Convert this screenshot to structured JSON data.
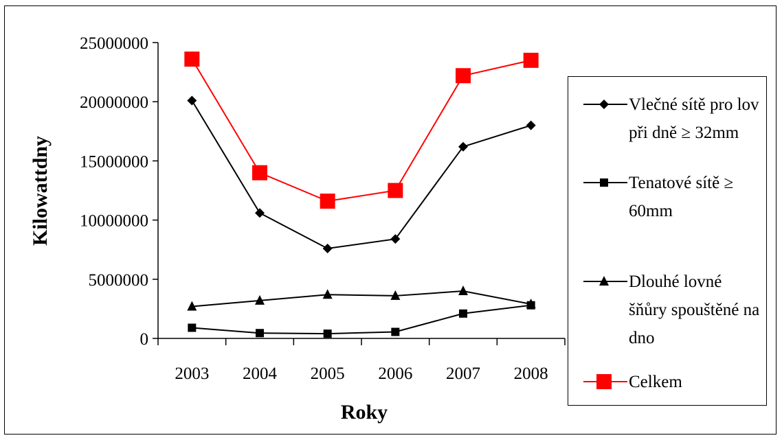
{
  "chart_data": {
    "type": "line",
    "title": "",
    "xlabel": "Roky",
    "ylabel": "Kilowattdny",
    "categories": [
      "2003",
      "2004",
      "2005",
      "2006",
      "2007",
      "2008"
    ],
    "ylim": [
      0,
      25000000
    ],
    "yticks": [
      "0",
      "5000000",
      "10000000",
      "15000000",
      "20000000",
      "25000000"
    ],
    "grid": false,
    "legend_position": "right",
    "series": [
      {
        "name": "Vlečné sítě pro lov při dně ≥ 32mm",
        "marker": "diamond",
        "color": "#000000",
        "values": [
          20100000,
          10600000,
          7600000,
          8400000,
          16200000,
          18000000
        ]
      },
      {
        "name": "Tenatové sítě ≥ 60mm",
        "marker": "square",
        "color": "#000000",
        "values": [
          900000,
          450000,
          400000,
          550000,
          2100000,
          2800000
        ]
      },
      {
        "name": "Dlouhé lovné šňůry spouštěné na dno",
        "marker": "triangle",
        "color": "#000000",
        "values": [
          2700000,
          3200000,
          3700000,
          3600000,
          4000000,
          2900000
        ]
      },
      {
        "name": "Celkem",
        "marker": "square-large",
        "color": "#ff0000",
        "values": [
          23600000,
          14000000,
          11600000,
          12500000,
          22200000,
          23500000
        ]
      }
    ]
  }
}
